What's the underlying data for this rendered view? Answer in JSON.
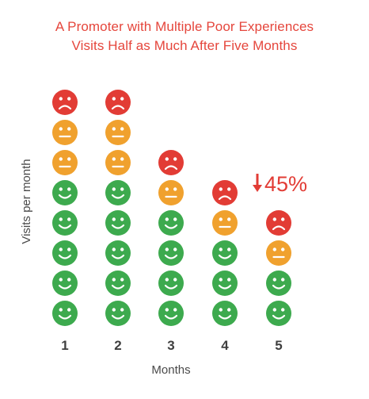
{
  "title_line_1": "A Promoter with Multiple Poor Experiences",
  "title_line_2": "Visits Half as Much After Five Months",
  "chart_data": {
    "type": "pictograph",
    "xlabel": "Months",
    "ylabel": "Visits per month",
    "categories": [
      "1",
      "2",
      "3",
      "4",
      "5"
    ],
    "series": [
      {
        "name": "happy",
        "values": [
          5,
          5,
          4,
          3,
          2
        ]
      },
      {
        "name": "neutral",
        "values": [
          2,
          2,
          1,
          1,
          1
        ]
      },
      {
        "name": "sad",
        "values": [
          1,
          1,
          1,
          1,
          1
        ]
      }
    ],
    "totals": [
      8,
      8,
      6,
      5,
      4
    ],
    "annotation": {
      "text": "45%",
      "arrow": "down",
      "category": "5"
    },
    "colors": {
      "happy": "#3daa4e",
      "neutral": "#f0a12e",
      "sad": "#e23c35",
      "title": "#e5463c",
      "text": "#444444"
    }
  }
}
